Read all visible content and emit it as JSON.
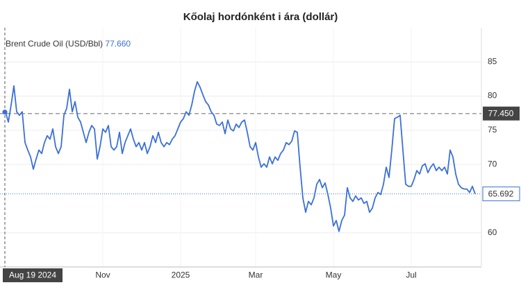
{
  "chart_data": {
    "type": "line",
    "title": "Kőolaj hordónként i ára (dollár)",
    "series": [
      {
        "name": "Brent Crude Oil (USD/Bbl)",
        "color": "#3a6fd8",
        "values": [
          77.66,
          76.2,
          78.7,
          81.5,
          77.7,
          77.2,
          77.7,
          73.2,
          72.1,
          71.1,
          69.3,
          70.8,
          72.1,
          71.6,
          73.2,
          74.2,
          73.7,
          75.2,
          72.6,
          71.6,
          72.6,
          77.2,
          78.2,
          81.0,
          77.7,
          79.2,
          76.9,
          76.2,
          74.7,
          73.2,
          74.7,
          75.7,
          75.2,
          70.8,
          72.6,
          75.2,
          74.7,
          75.7,
          72.6,
          72.1,
          72.6,
          74.7,
          71.6,
          73.2,
          74.2,
          75.2,
          73.7,
          72.6,
          73.2,
          72.1,
          73.2,
          71.6,
          72.6,
          74.2,
          73.2,
          74.7,
          73.2,
          72.6,
          73.2,
          72.9,
          73.7,
          74.2,
          75.2,
          76.2,
          76.7,
          77.7,
          77.2,
          78.7,
          80.7,
          82.1,
          81.3,
          80.2,
          79.2,
          78.7,
          77.7,
          77.2,
          75.9,
          75.7,
          76.2,
          74.5,
          76.5,
          75.2,
          74.9,
          75.9,
          75.4,
          76.2,
          76.5,
          74.7,
          72.6,
          72.1,
          73.2,
          71.1,
          69.6,
          70.1,
          69.6,
          71.1,
          70.1,
          71.1,
          70.6,
          71.6,
          72.1,
          73.2,
          72.9,
          73.4,
          74.9,
          74.7,
          69.6,
          65.1,
          63.0,
          64.6,
          64.1,
          65.1,
          67.1,
          67.8,
          66.6,
          67.3,
          65.6,
          63.6,
          61.0,
          61.8,
          60.2,
          61.8,
          62.6,
          66.6,
          65.1,
          64.6,
          65.4,
          64.8,
          65.1,
          64.3,
          64.6,
          63.0,
          63.6,
          65.1,
          65.9,
          65.6,
          67.1,
          69.6,
          68.1,
          72.1,
          76.7,
          76.9,
          77.2,
          72.1,
          67.1,
          66.8,
          66.8,
          67.8,
          69.1,
          68.6,
          69.8,
          70.1,
          68.8,
          69.6,
          70.1,
          69.1,
          69.6,
          69.1,
          69.6,
          68.6,
          72.1,
          71.1,
          68.6,
          67.1,
          66.6,
          66.4,
          66.4,
          65.9,
          66.8,
          65.692
        ]
      }
    ],
    "crosshair": {
      "value": 77.66,
      "label": "77.660"
    },
    "reference_line": {
      "value": 77.45,
      "label": "77.450"
    },
    "last_price": {
      "value": 65.692,
      "label": "65.692"
    },
    "xlim": [
      0,
      169
    ],
    "xticks": [
      {
        "value": 0,
        "label": "Aug 19 2024"
      },
      {
        "value": 35,
        "label": "Nov"
      },
      {
        "value": 63,
        "label": "2025"
      },
      {
        "value": 90,
        "label": "Mar"
      },
      {
        "value": 118,
        "label": "May"
      },
      {
        "value": 146,
        "label": "Jul"
      }
    ],
    "ylim": [
      55,
      90
    ],
    "yticks": [
      60,
      70,
      75,
      80,
      85
    ],
    "grid": true
  }
}
